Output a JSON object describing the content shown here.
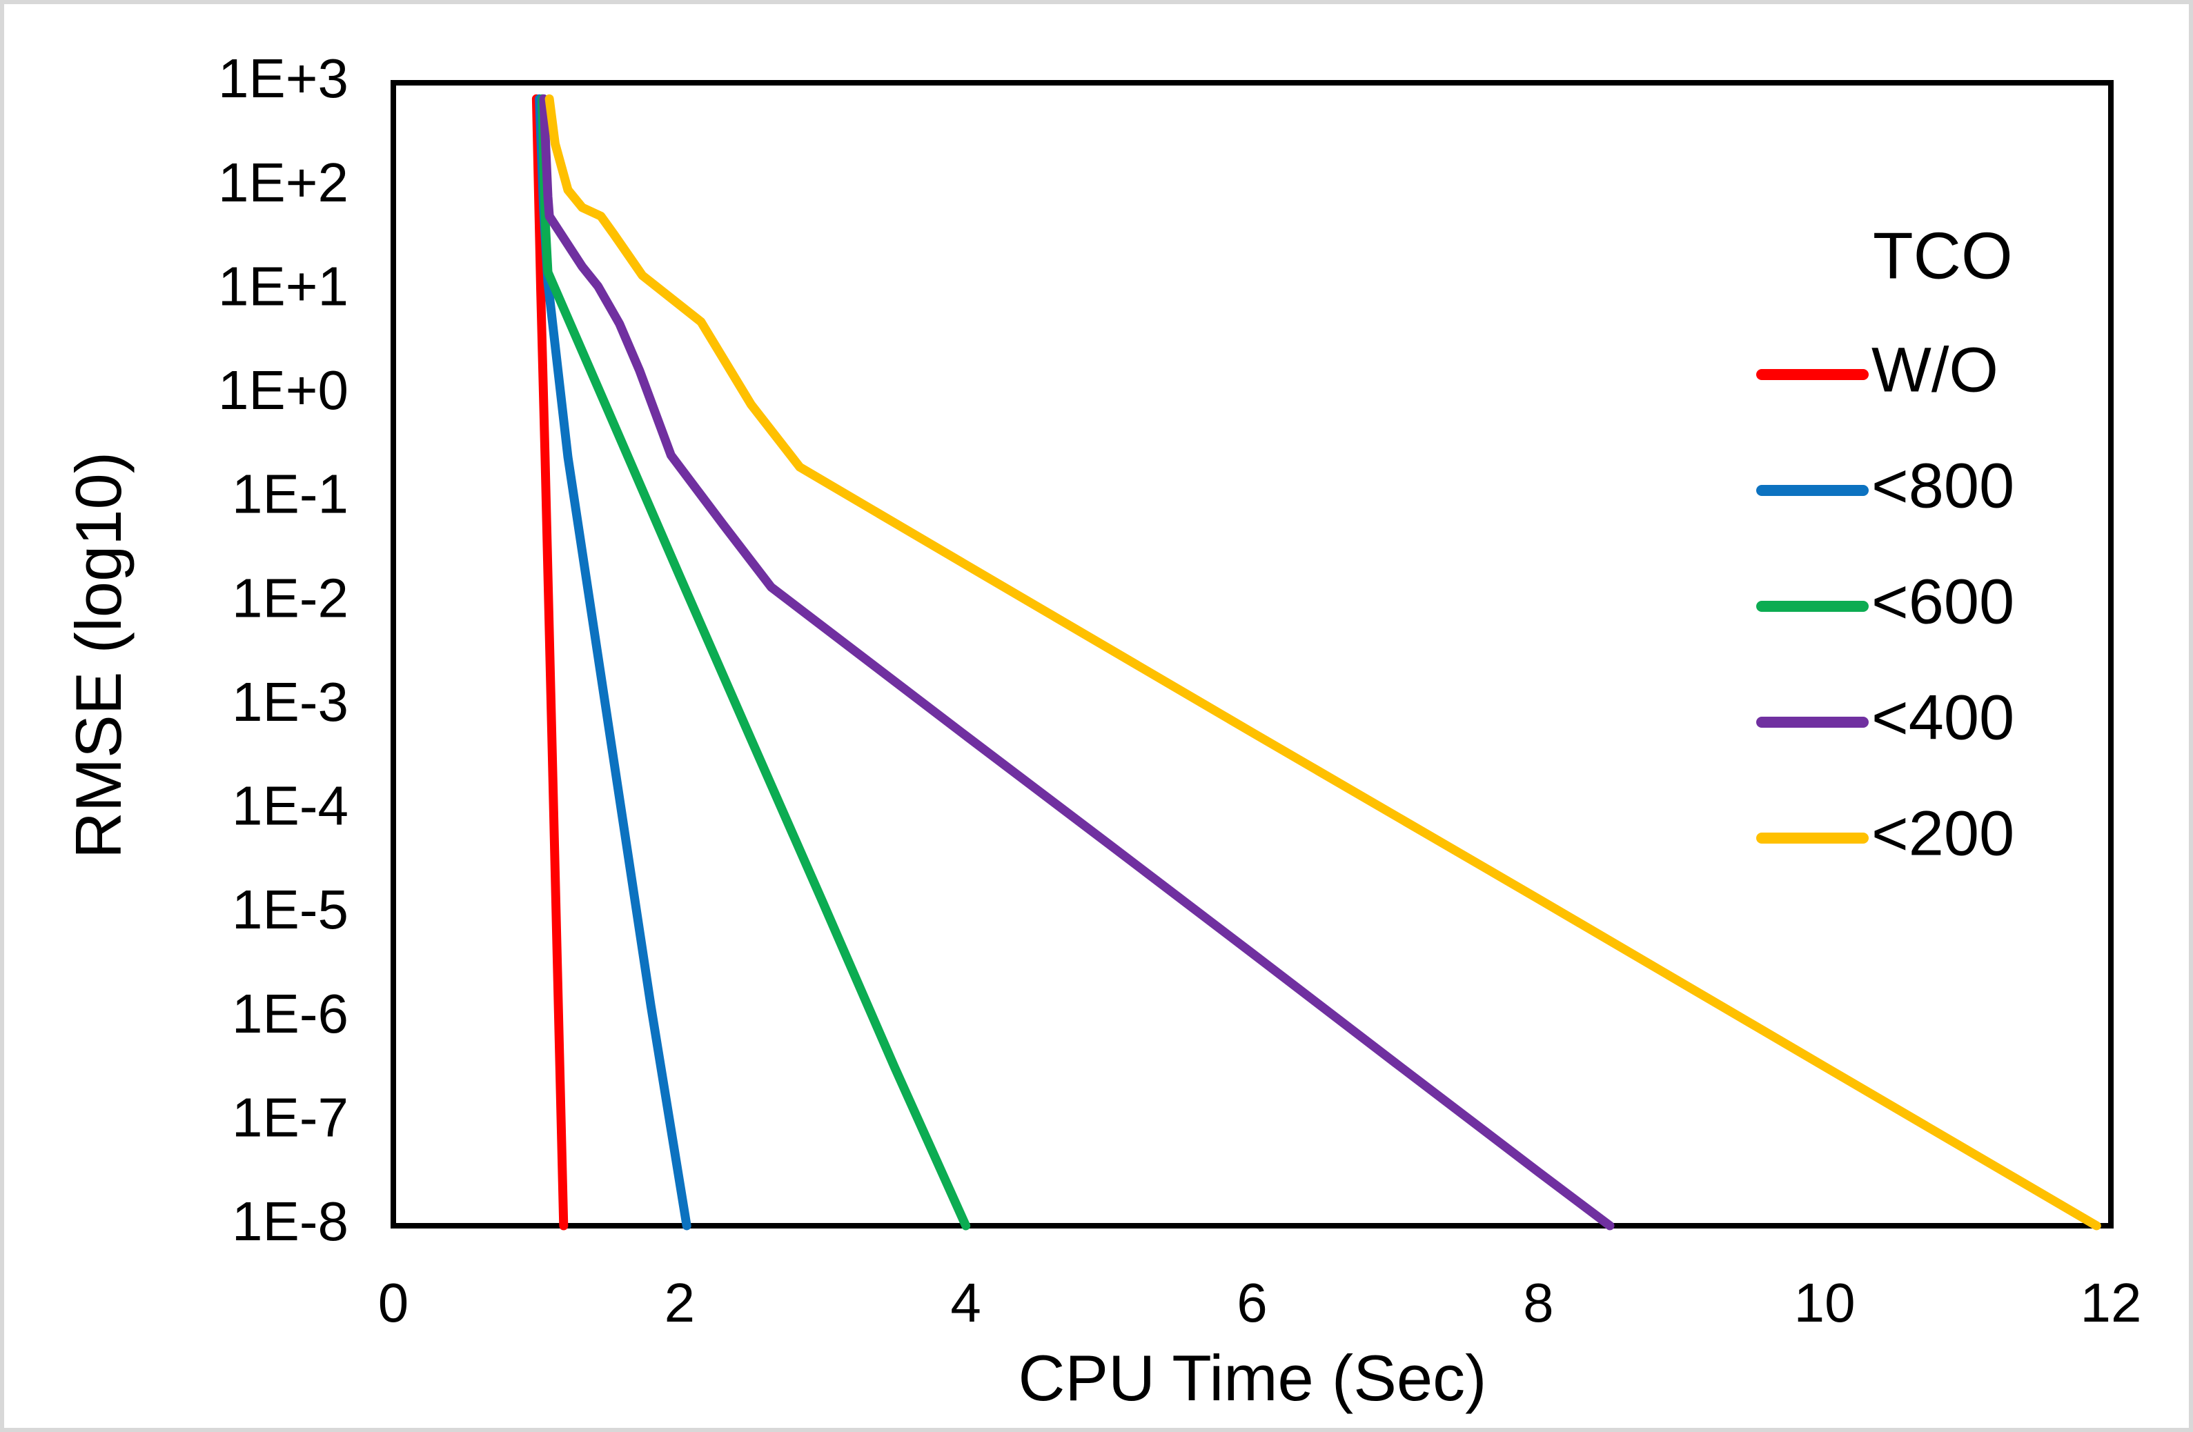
{
  "chart_data": {
    "type": "line",
    "title": "",
    "xlabel": "CPU Time (Sec)",
    "ylabel": "RMSE (log10)",
    "x_ticks": [
      "0",
      "2",
      "4",
      "6",
      "8",
      "10",
      "12"
    ],
    "x_tick_values": [
      0,
      2,
      4,
      6,
      8,
      10,
      12
    ],
    "y_ticks": [
      "1E+3",
      "1E+2",
      "1E+1",
      "1E+0",
      "1E-1",
      "1E-2",
      "1E-3",
      "1E-4",
      "1E-5",
      "1E-6",
      "1E-7",
      "1E-8"
    ],
    "y_tick_log_values": [
      3,
      2,
      1,
      0,
      -1,
      -2,
      -3,
      -4,
      -5,
      -6,
      -7,
      -8
    ],
    "xlim": [
      0,
      12
    ],
    "ylim_log": [
      3,
      -8
    ],
    "y_scale": "log10",
    "grid": false,
    "legend": {
      "title": "TCO",
      "position": "right-inside"
    },
    "series": [
      {
        "name": "W/O",
        "color": "#FF0000",
        "points": [
          [
            1.0,
            700
          ],
          [
            1.03,
            10
          ],
          [
            1.06,
            0.25
          ],
          [
            1.12,
            0.0001
          ],
          [
            1.19,
            1e-08
          ]
        ]
      },
      {
        "name": "<800",
        "color": "#0C72C0",
        "points": [
          [
            1.02,
            700
          ],
          [
            1.05,
            60
          ],
          [
            1.08,
            12
          ],
          [
            1.22,
            0.25
          ],
          [
            1.5,
            0.0007
          ],
          [
            1.8,
            1.3e-06
          ],
          [
            2.05,
            1e-08
          ]
        ]
      },
      {
        "name": "<600",
        "color": "#0CAC52",
        "points": [
          [
            1.04,
            700
          ],
          [
            1.06,
            50
          ],
          [
            1.08,
            15
          ],
          [
            1.5,
            0.7
          ],
          [
            2.0,
            0.018
          ],
          [
            2.5,
            0.00048
          ],
          [
            3.0,
            1.3e-05
          ],
          [
            3.5,
            3.4e-07
          ],
          [
            4.0,
            1e-08
          ]
        ]
      },
      {
        "name": "<400",
        "color": "#7030A0",
        "points": [
          [
            1.05,
            700
          ],
          [
            1.08,
            80
          ],
          [
            1.09,
            52
          ],
          [
            1.32,
            17
          ],
          [
            1.43,
            11
          ],
          [
            1.58,
            4.8
          ],
          [
            1.72,
            1.7
          ],
          [
            1.94,
            0.26
          ],
          [
            2.3,
            0.057
          ],
          [
            2.64,
            0.014
          ],
          [
            4.0,
            0.00052
          ],
          [
            5.0,
            4.7e-05
          ],
          [
            6.0,
            4.2e-06
          ],
          [
            7.0,
            3.7e-07
          ],
          [
            8.0,
            3.3e-08
          ],
          [
            8.5,
            1e-08
          ]
        ]
      },
      {
        "name": "<200",
        "color": "#FFC000",
        "points": [
          [
            1.09,
            700
          ],
          [
            1.13,
            260
          ],
          [
            1.22,
            93
          ],
          [
            1.32,
            63
          ],
          [
            1.45,
            52
          ],
          [
            1.54,
            35
          ],
          [
            1.74,
            14
          ],
          [
            2.15,
            5
          ],
          [
            2.5,
            0.8
          ],
          [
            2.84,
            0.2
          ],
          [
            4.0,
            0.023
          ],
          [
            6.0,
            0.00056
          ],
          [
            8.0,
            1.4e-05
          ],
          [
            10.0,
            3.4e-07
          ],
          [
            11.9,
            1e-08
          ]
        ]
      }
    ]
  },
  "colors": {
    "axis": "#000000",
    "frame": "#D8D8D8",
    "background": "#FFFFFF"
  }
}
